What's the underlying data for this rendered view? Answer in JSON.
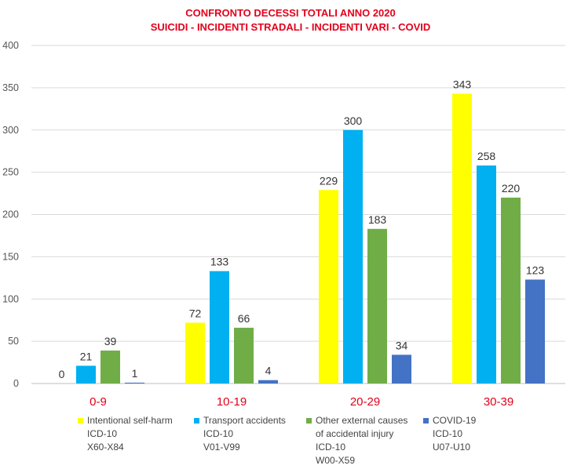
{
  "title_line1": "CONFRONTO DECESSI TOTALI ANNO 2020",
  "title_line2": "SUICIDI - INCIDENTI STRADALI - INCIDENTI VARI - COVID",
  "chart_data": {
    "type": "bar",
    "title": "CONFRONTO DECESSI TOTALI ANNO 2020\nSUICIDI - INCIDENTI STRADALI - INCIDENTI VARI - COVID",
    "categories": [
      "0-9",
      "10-19",
      "20-29",
      "30-39"
    ],
    "ylim": [
      0,
      400
    ],
    "yticks": [
      0,
      50,
      100,
      150,
      200,
      250,
      300,
      350,
      400
    ],
    "grid": true,
    "legend_position": "bottom",
    "series": [
      {
        "name": "Intentional self-harm ICD-10 X60-X84",
        "color": "#ffff00",
        "values": [
          0,
          72,
          229,
          343
        ]
      },
      {
        "name": "Transport accidents ICD-10 V01-V99",
        "color": "#00b0f0",
        "values": [
          21,
          133,
          300,
          258
        ]
      },
      {
        "name": "Other external causes of accidental injury ICD-10 W00-X59",
        "color": "#70ad47",
        "values": [
          39,
          66,
          183,
          220
        ]
      },
      {
        "name": "COVID-19 ICD-10 U07-U10",
        "color": "#4472c4",
        "values": [
          1,
          4,
          34,
          123
        ]
      }
    ]
  },
  "legend": [
    {
      "text": "Intentional self-harm\nICD-10\nX60-X84",
      "color": "#ffff00"
    },
    {
      "text": "Transport accidents\nICD-10\nV01-V99",
      "color": "#00b0f0"
    },
    {
      "text": "Other external causes\nof accidental injury\nICD-10\nW00-X59",
      "color": "#70ad47"
    },
    {
      "text": "COVID-19\nICD-10\nU07-U10",
      "color": "#4472c4"
    }
  ]
}
